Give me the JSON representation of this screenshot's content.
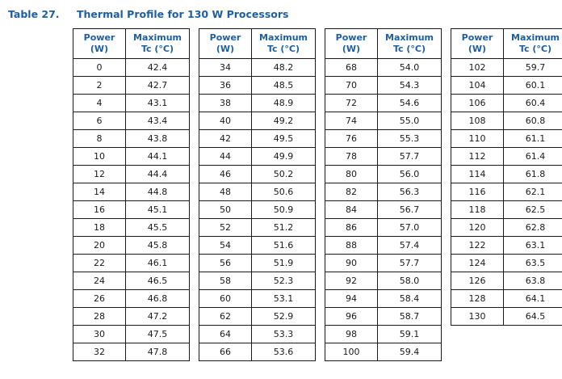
{
  "colors": {
    "accent_blue": "#1f5fa0",
    "border": "#1a1a1a",
    "cell_text": "#1a1a1a",
    "background": "#ffffff"
  },
  "title": {
    "label": "Table 27.",
    "text": "Thermal Profile for 130 W Processors"
  },
  "columns": [
    {
      "line1": "Power",
      "line2": "(W)"
    },
    {
      "line1": "Maximum",
      "line2": "Tc (°C)"
    }
  ],
  "tables": [
    {
      "rows": [
        [
          "0",
          "42.4"
        ],
        [
          "2",
          "42.7"
        ],
        [
          "4",
          "43.1"
        ],
        [
          "6",
          "43.4"
        ],
        [
          "8",
          "43.8"
        ],
        [
          "10",
          "44.1"
        ],
        [
          "12",
          "44.4"
        ],
        [
          "14",
          "44.8"
        ],
        [
          "16",
          "45.1"
        ],
        [
          "18",
          "45.5"
        ],
        [
          "20",
          "45.8"
        ],
        [
          "22",
          "46.1"
        ],
        [
          "24",
          "46.5"
        ],
        [
          "26",
          "46.8"
        ],
        [
          "28",
          "47.2"
        ],
        [
          "30",
          "47.5"
        ],
        [
          "32",
          "47.8"
        ]
      ]
    },
    {
      "rows": [
        [
          "34",
          "48.2"
        ],
        [
          "36",
          "48.5"
        ],
        [
          "38",
          "48.9"
        ],
        [
          "40",
          "49.2"
        ],
        [
          "42",
          "49.5"
        ],
        [
          "44",
          "49.9"
        ],
        [
          "46",
          "50.2"
        ],
        [
          "48",
          "50.6"
        ],
        [
          "50",
          "50.9"
        ],
        [
          "52",
          "51.2"
        ],
        [
          "54",
          "51.6"
        ],
        [
          "56",
          "51.9"
        ],
        [
          "58",
          "52.3"
        ],
        [
          "60",
          "53.1"
        ],
        [
          "62",
          "52.9"
        ],
        [
          "64",
          "53.3"
        ],
        [
          "66",
          "53.6"
        ]
      ]
    },
    {
      "rows": [
        [
          "68",
          "54.0"
        ],
        [
          "70",
          "54.3"
        ],
        [
          "72",
          "54.6"
        ],
        [
          "74",
          "55.0"
        ],
        [
          "76",
          "55.3"
        ],
        [
          "78",
          "57.7"
        ],
        [
          "80",
          "56.0"
        ],
        [
          "82",
          "56.3"
        ],
        [
          "84",
          "56.7"
        ],
        [
          "86",
          "57.0"
        ],
        [
          "88",
          "57.4"
        ],
        [
          "90",
          "57.7"
        ],
        [
          "92",
          "58.0"
        ],
        [
          "94",
          "58.4"
        ],
        [
          "96",
          "58.7"
        ],
        [
          "98",
          "59.1"
        ],
        [
          "100",
          "59.4"
        ]
      ]
    },
    {
      "rows": [
        [
          "102",
          "59.7"
        ],
        [
          "104",
          "60.1"
        ],
        [
          "106",
          "60.4"
        ],
        [
          "108",
          "60.8"
        ],
        [
          "110",
          "61.1"
        ],
        [
          "112",
          "61.4"
        ],
        [
          "114",
          "61.8"
        ],
        [
          "116",
          "62.1"
        ],
        [
          "118",
          "62.5"
        ],
        [
          "120",
          "62.8"
        ],
        [
          "122",
          "63.1"
        ],
        [
          "124",
          "63.5"
        ],
        [
          "126",
          "63.8"
        ],
        [
          "128",
          "64.1"
        ],
        [
          "130",
          "64.5"
        ]
      ]
    }
  ]
}
